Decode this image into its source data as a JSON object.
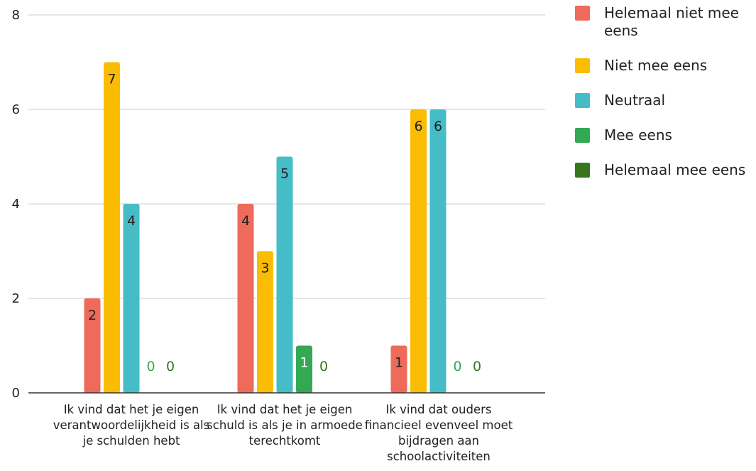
{
  "chart_data": {
    "type": "bar",
    "title": "",
    "xlabel": "",
    "ylabel": "",
    "ylim": [
      0,
      8
    ],
    "yticks": [
      0,
      2,
      4,
      6,
      8
    ],
    "grid": true,
    "legend_position": "right",
    "categories": [
      "Ik vind dat het je eigen verantwoordelijkheid is als je schulden hebt",
      "Ik vind dat het je eigen schuld is als je in armoede terechtkomt",
      "Ik vind dat ouders financieel evenveel moet bijdragen aan schoolactiviteiten"
    ],
    "series": [
      {
        "name": "Helemaal niet mee eens",
        "color": "#EE6A5A",
        "values": [
          2,
          4,
          1
        ]
      },
      {
        "name": "Niet mee eens",
        "color": "#FBBC04",
        "values": [
          7,
          3,
          6
        ]
      },
      {
        "name": "Neutraal",
        "color": "#46BDC6",
        "values": [
          4,
          5,
          6
        ]
      },
      {
        "name": "Mee eens",
        "color": "#34A853",
        "values": [
          0,
          1,
          0
        ]
      },
      {
        "name": "Helemaal mee eens",
        "color": "#38761D",
        "values": [
          0,
          0,
          0
        ]
      }
    ]
  }
}
